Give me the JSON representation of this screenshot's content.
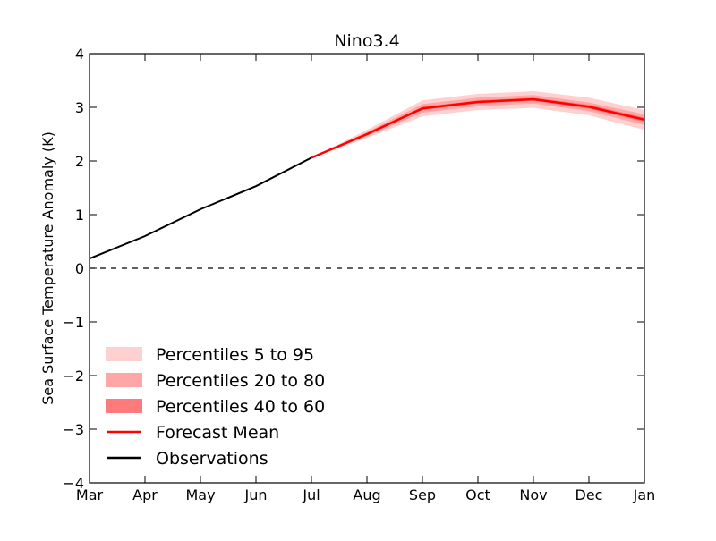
{
  "chart_data": {
    "type": "line",
    "title": "Nino3.4",
    "xlabel": "",
    "ylabel": "Sea Surface Temperature Anomaly (K)",
    "categories": [
      "Mar",
      "Apr",
      "May",
      "Jun",
      "Jul",
      "Aug",
      "Sep",
      "Oct",
      "Nov",
      "Dec",
      "Jan"
    ],
    "ylim": [
      -4,
      4
    ],
    "yticks": [
      -4,
      -3,
      -2,
      -1,
      0,
      1,
      2,
      3,
      4
    ],
    "ytick_labels": [
      "−4",
      "−3",
      "−2",
      "−1",
      "0",
      "1",
      "2",
      "3",
      "4"
    ],
    "grid": false,
    "legend_position": "lower-left",
    "reference_line": {
      "y": 0,
      "style": "dashed",
      "color": "#000000"
    },
    "series": [
      {
        "name": "Observations",
        "kind": "line",
        "color": "#000000",
        "x": [
          "Mar",
          "Apr",
          "May",
          "Jun",
          "Jul"
        ],
        "values": [
          0.18,
          0.6,
          1.1,
          1.53,
          2.06
        ]
      },
      {
        "name": "Forecast Mean",
        "kind": "line",
        "color": "#ff0000",
        "x": [
          "Jul",
          "Aug",
          "Sep",
          "Oct",
          "Nov",
          "Dec",
          "Jan"
        ],
        "values": [
          2.06,
          2.5,
          2.98,
          3.1,
          3.15,
          3.01,
          2.77
        ]
      },
      {
        "name": "Percentiles 5 to 95",
        "kind": "band",
        "color": "#ffd0d0",
        "x": [
          "Jul",
          "Aug",
          "Sep",
          "Oct",
          "Nov",
          "Dec",
          "Jan"
        ],
        "lower": [
          2.06,
          2.43,
          2.83,
          2.95,
          2.99,
          2.85,
          2.58
        ],
        "upper": [
          2.06,
          2.58,
          3.13,
          3.25,
          3.3,
          3.18,
          2.95
        ]
      },
      {
        "name": "Percentiles 20 to 80",
        "kind": "band",
        "color": "#ffa6a6",
        "x": [
          "Jul",
          "Aug",
          "Sep",
          "Oct",
          "Nov",
          "Dec",
          "Jan"
        ],
        "lower": [
          2.06,
          2.46,
          2.9,
          3.02,
          3.07,
          2.93,
          2.67
        ],
        "upper": [
          2.06,
          2.54,
          3.06,
          3.18,
          3.23,
          3.09,
          2.87
        ]
      },
      {
        "name": "Percentiles 40 to 60",
        "kind": "band",
        "color": "#ff7b7b",
        "x": [
          "Jul",
          "Aug",
          "Sep",
          "Oct",
          "Nov",
          "Dec",
          "Jan"
        ],
        "lower": [
          2.06,
          2.48,
          2.95,
          3.07,
          3.12,
          2.97,
          2.73
        ],
        "upper": [
          2.06,
          2.52,
          3.01,
          3.13,
          3.18,
          3.05,
          2.81
        ]
      }
    ],
    "legend": [
      {
        "label": "Percentiles 5 to 95",
        "swatch": "box",
        "color": "#ffd0d0"
      },
      {
        "label": "Percentiles 20 to 80",
        "swatch": "box",
        "color": "#ffa6a6"
      },
      {
        "label": "Percentiles 40 to 60",
        "swatch": "box",
        "color": "#ff7b7b"
      },
      {
        "label": "Forecast Mean",
        "swatch": "line",
        "color": "#ff0000"
      },
      {
        "label": "Observations",
        "swatch": "line",
        "color": "#000000"
      }
    ]
  }
}
